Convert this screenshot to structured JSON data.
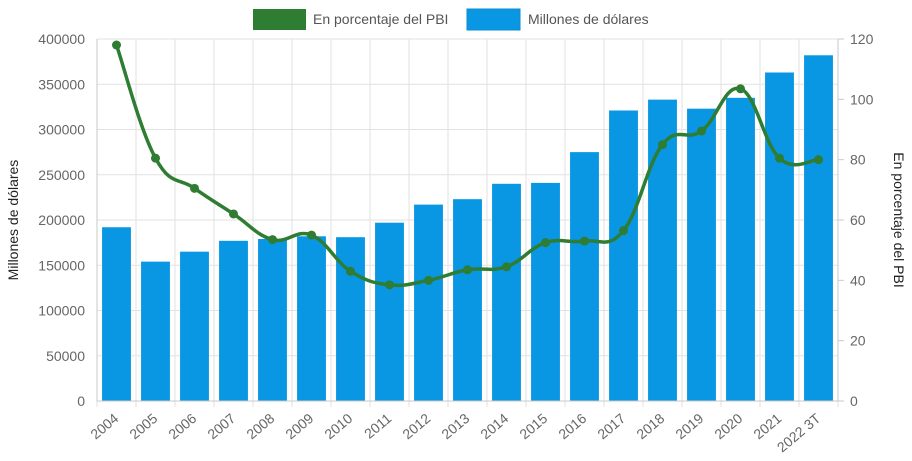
{
  "chart_data": {
    "type": "bar",
    "categories": [
      "2004",
      "2005",
      "2006",
      "2007",
      "2008",
      "2009",
      "2010",
      "2011",
      "2012",
      "2013",
      "2014",
      "2015",
      "2016",
      "2017",
      "2018",
      "2019",
      "2020",
      "2021",
      "2022 3T"
    ],
    "series": [
      {
        "name": "Millones de dólares",
        "type": "bar",
        "axis": "left",
        "color": "#0996e3",
        "values": [
          192000,
          154000,
          165000,
          177000,
          179000,
          182000,
          181000,
          197000,
          217000,
          223000,
          240000,
          241000,
          275000,
          321000,
          333000,
          323000,
          335000,
          363000,
          382000
        ]
      },
      {
        "name": "En porcentaje del PBI",
        "type": "line",
        "axis": "right",
        "color": "#2e7d32",
        "values": [
          118,
          80.5,
          70.5,
          62,
          53.5,
          55,
          43,
          38.5,
          40,
          43.5,
          44.5,
          52.5,
          53,
          56.5,
          85,
          89.5,
          103.5,
          80.5,
          80
        ]
      }
    ],
    "y_left": {
      "label": "Millones de dólares",
      "min": 0,
      "max": 400000,
      "ticks": [
        0,
        50000,
        100000,
        150000,
        200000,
        250000,
        300000,
        350000,
        400000
      ]
    },
    "y_right": {
      "label": "En porcentaje del PBI",
      "min": 0,
      "max": 120,
      "ticks": [
        0,
        20,
        40,
        60,
        80,
        100,
        120
      ]
    },
    "grid": true,
    "legend_position": "top-center"
  }
}
